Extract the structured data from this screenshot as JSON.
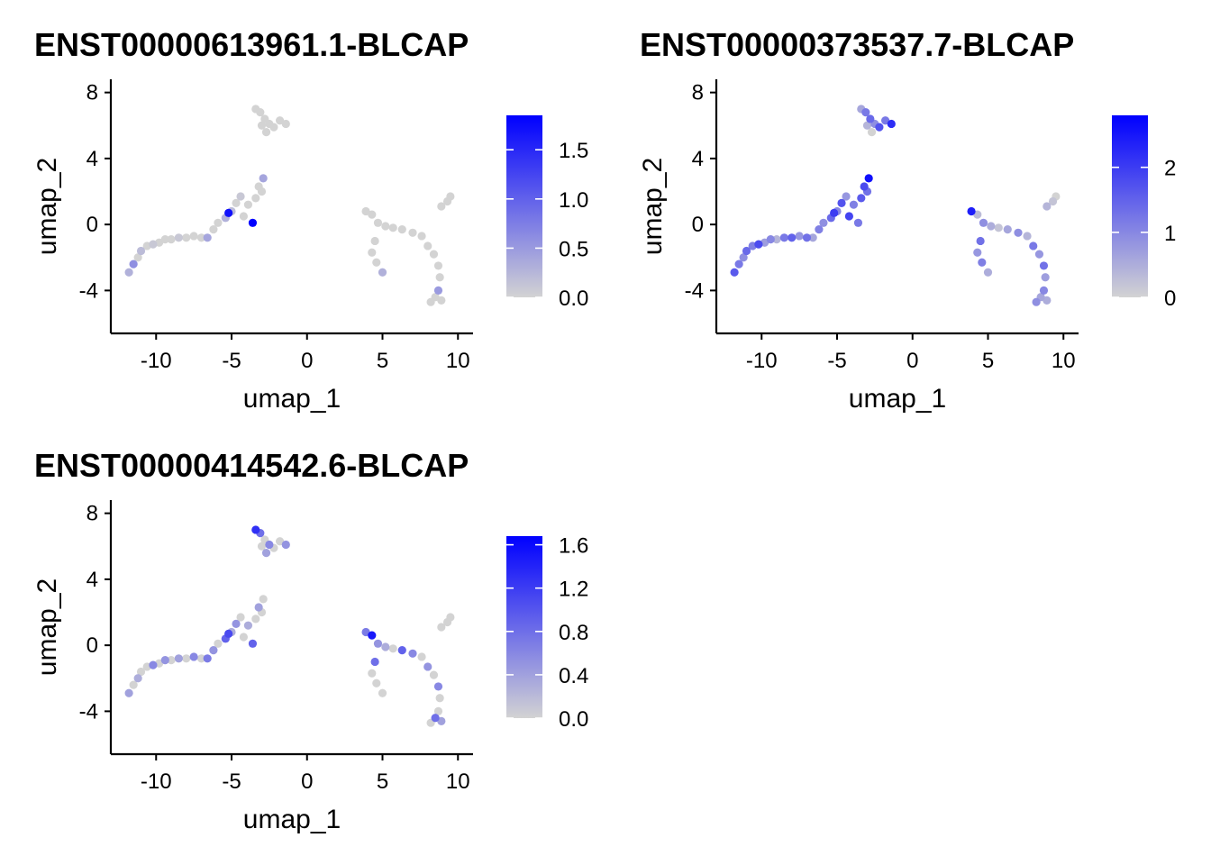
{
  "chart_data": [
    {
      "type": "scatter",
      "title": "ENST00000613961.1-BLCAP",
      "xlabel": "umap_1",
      "ylabel": "umap_2",
      "xlim": [
        -13,
        11
      ],
      "ylim": [
        -6.6,
        8.8
      ],
      "x_ticks": [
        -10,
        -5,
        0,
        5,
        10
      ],
      "x_tick_labels": [
        "-10",
        "-5",
        "0",
        "5",
        "10"
      ],
      "y_ticks": [
        -4,
        0,
        4,
        8
      ],
      "y_tick_labels": [
        "-4",
        "0",
        "4",
        "8"
      ],
      "colorbar": {
        "min": 0.0,
        "max": 1.85,
        "low_color": "#d3d3d3",
        "high_color": "#0000ff",
        "ticks": [
          0.0,
          0.5,
          1.0,
          1.5
        ],
        "tick_labels": [
          "0.0",
          "0.5",
          "1.0",
          "1.5"
        ]
      },
      "points": [
        [
          -11.8,
          -2.9,
          0.3
        ],
        [
          -11.5,
          -2.4,
          0.6
        ],
        [
          -11.2,
          -2.0,
          0.0
        ],
        [
          -11.0,
          -1.6,
          0.2
        ],
        [
          -10.6,
          -1.3,
          0.0
        ],
        [
          -10.2,
          -1.2,
          0.1
        ],
        [
          -9.8,
          -1.1,
          0.0
        ],
        [
          -9.4,
          -0.9,
          0.0
        ],
        [
          -9.0,
          -0.9,
          0.0
        ],
        [
          -8.5,
          -0.8,
          0.1
        ],
        [
          -8.0,
          -0.8,
          0.0
        ],
        [
          -7.5,
          -0.7,
          0.0
        ],
        [
          -7.0,
          -0.8,
          0.0
        ],
        [
          -6.6,
          -0.8,
          0.4
        ],
        [
          -6.2,
          -0.3,
          0.0
        ],
        [
          -5.9,
          0.1,
          0.0
        ],
        [
          -5.4,
          0.4,
          0.3
        ],
        [
          -5.0,
          0.8,
          0.2
        ],
        [
          -4.7,
          1.3,
          0.0
        ],
        [
          -4.4,
          1.7,
          0.1
        ],
        [
          -5.2,
          0.7,
          1.7
        ],
        [
          -3.6,
          0.1,
          1.85
        ],
        [
          -4.2,
          0.5,
          0.0
        ],
        [
          -3.9,
          1.2,
          0.0
        ],
        [
          -3.4,
          1.6,
          0.0
        ],
        [
          -3.0,
          2.0,
          0.0
        ],
        [
          -2.9,
          2.8,
          0.4
        ],
        [
          -3.2,
          2.3,
          0.0
        ],
        [
          -3.4,
          7.0,
          0.0
        ],
        [
          -3.1,
          6.8,
          0.0
        ],
        [
          -2.8,
          6.4,
          0.0
        ],
        [
          -2.5,
          6.1,
          0.0
        ],
        [
          -2.2,
          5.9,
          0.0
        ],
        [
          -1.8,
          6.3,
          0.0
        ],
        [
          -1.4,
          6.1,
          0.0
        ],
        [
          -3.0,
          6.0,
          0.0
        ],
        [
          -2.7,
          5.6,
          0.0
        ],
        [
          3.9,
          0.8,
          0.0
        ],
        [
          4.3,
          0.6,
          0.0
        ],
        [
          4.7,
          0.1,
          0.0
        ],
        [
          5.2,
          -0.1,
          0.0
        ],
        [
          5.7,
          -0.2,
          0.0
        ],
        [
          6.3,
          -0.3,
          0.0
        ],
        [
          7.0,
          -0.5,
          0.0
        ],
        [
          7.6,
          -0.7,
          0.0
        ],
        [
          8.0,
          -1.3,
          0.0
        ],
        [
          8.4,
          -1.8,
          0.0
        ],
        [
          8.7,
          -2.5,
          0.0
        ],
        [
          8.8,
          -3.2,
          0.0
        ],
        [
          8.7,
          -4.0,
          0.5
        ],
        [
          8.5,
          -4.4,
          0.0
        ],
        [
          8.2,
          -4.7,
          0.0
        ],
        [
          8.9,
          -4.6,
          0.0
        ],
        [
          4.3,
          -1.7,
          0.0
        ],
        [
          4.6,
          -2.3,
          0.0
        ],
        [
          5.0,
          -2.9,
          0.3
        ],
        [
          4.5,
          -1.0,
          0.0
        ],
        [
          8.9,
          1.1,
          0.0
        ],
        [
          9.3,
          1.4,
          0.0
        ],
        [
          9.5,
          1.7,
          0.0
        ]
      ]
    },
    {
      "type": "scatter",
      "title": "ENST00000373537.7-BLCAP",
      "xlabel": "umap_1",
      "ylabel": "umap_2",
      "xlim": [
        -13,
        11
      ],
      "ylim": [
        -6.6,
        8.8
      ],
      "x_ticks": [
        -10,
        -5,
        0,
        5,
        10
      ],
      "x_tick_labels": [
        "-10",
        "-5",
        "0",
        "5",
        "10"
      ],
      "y_ticks": [
        -4,
        0,
        4,
        8
      ],
      "y_tick_labels": [
        "-4",
        "0",
        "4",
        "8"
      ],
      "colorbar": {
        "min": 0,
        "max": 2.8,
        "low_color": "#d3d3d3",
        "high_color": "#0000ff",
        "ticks": [
          0,
          1,
          2
        ],
        "tick_labels": [
          "0",
          "1",
          "2"
        ]
      },
      "points": [
        [
          -11.8,
          -2.9,
          1.6
        ],
        [
          -11.5,
          -2.4,
          1.2
        ],
        [
          -11.2,
          -2.0,
          0.9
        ],
        [
          -11.0,
          -1.6,
          1.4
        ],
        [
          -10.6,
          -1.3,
          1.1
        ],
        [
          -10.2,
          -1.2,
          1.8
        ],
        [
          -9.8,
          -1.1,
          0.7
        ],
        [
          -9.4,
          -0.9,
          1.0
        ],
        [
          -9.0,
          -0.9,
          0.4
        ],
        [
          -8.5,
          -0.8,
          1.2
        ],
        [
          -8.0,
          -0.8,
          1.5
        ],
        [
          -7.5,
          -0.7,
          0.8
        ],
        [
          -7.0,
          -0.8,
          1.3
        ],
        [
          -6.6,
          -0.8,
          0.6
        ],
        [
          -6.2,
          -0.3,
          1.1
        ],
        [
          -5.9,
          0.1,
          0.9
        ],
        [
          -5.4,
          0.4,
          1.4
        ],
        [
          -5.0,
          0.8,
          1.0
        ],
        [
          -4.7,
          1.3,
          1.7
        ],
        [
          -4.4,
          1.7,
          0.8
        ],
        [
          -5.2,
          0.7,
          2.0
        ],
        [
          -3.6,
          0.1,
          1.2
        ],
        [
          -4.2,
          0.5,
          1.9
        ],
        [
          -3.9,
          1.2,
          1.1
        ],
        [
          -3.4,
          1.6,
          1.6
        ],
        [
          -3.0,
          2.0,
          1.3
        ],
        [
          -2.9,
          2.8,
          2.6
        ],
        [
          -3.2,
          2.3,
          1.8
        ],
        [
          -3.4,
          7.0,
          0.6
        ],
        [
          -3.1,
          6.8,
          1.2
        ],
        [
          -2.8,
          6.4,
          1.4
        ],
        [
          -2.5,
          6.1,
          0.9
        ],
        [
          -2.2,
          5.9,
          1.7
        ],
        [
          -1.8,
          6.3,
          1.2
        ],
        [
          -1.4,
          6.1,
          2.2
        ],
        [
          -3.0,
          6.0,
          0.4
        ],
        [
          -2.7,
          5.6,
          0.0
        ],
        [
          3.9,
          0.8,
          2.4
        ],
        [
          4.3,
          0.6,
          0.3
        ],
        [
          4.7,
          0.1,
          0.9
        ],
        [
          5.2,
          -0.1,
          0.5
        ],
        [
          5.7,
          -0.2,
          0.2
        ],
        [
          6.3,
          -0.3,
          0.6
        ],
        [
          7.0,
          -0.5,
          0.9
        ],
        [
          7.6,
          -0.7,
          0.4
        ],
        [
          8.0,
          -1.3,
          1.2
        ],
        [
          8.4,
          -1.8,
          0.8
        ],
        [
          8.7,
          -2.5,
          1.3
        ],
        [
          8.8,
          -3.2,
          0.7
        ],
        [
          8.7,
          -4.0,
          1.0
        ],
        [
          8.5,
          -4.4,
          0.6
        ],
        [
          8.2,
          -4.7,
          0.9
        ],
        [
          8.9,
          -4.6,
          0.5
        ],
        [
          4.3,
          -1.7,
          0.8
        ],
        [
          4.6,
          -2.3,
          1.1
        ],
        [
          5.0,
          -2.9,
          0.5
        ],
        [
          4.5,
          -1.0,
          1.3
        ],
        [
          8.9,
          1.1,
          0.4
        ],
        [
          9.3,
          1.4,
          0.2
        ],
        [
          9.5,
          1.7,
          0.0
        ]
      ]
    },
    {
      "type": "scatter",
      "title": "ENST00000414542.6-BLCAP",
      "xlabel": "umap_1",
      "ylabel": "umap_2",
      "xlim": [
        -13,
        11
      ],
      "ylim": [
        -6.6,
        8.8
      ],
      "x_ticks": [
        -10,
        -5,
        0,
        5,
        10
      ],
      "x_tick_labels": [
        "-10",
        "-5",
        "0",
        "5",
        "10"
      ],
      "y_ticks": [
        -4,
        0,
        4,
        8
      ],
      "y_tick_labels": [
        "-4",
        "0",
        "4",
        "8"
      ],
      "colorbar": {
        "min": 0.0,
        "max": 1.68,
        "low_color": "#d3d3d3",
        "high_color": "#0000ff",
        "ticks": [
          0.0,
          0.4,
          0.8,
          1.2,
          1.6
        ],
        "tick_labels": [
          "0.0",
          "0.4",
          "0.8",
          "1.2",
          "1.6"
        ]
      },
      "points": [
        [
          -11.8,
          -2.9,
          0.4
        ],
        [
          -11.5,
          -2.4,
          0.0
        ],
        [
          -11.2,
          -2.0,
          0.3
        ],
        [
          -11.0,
          -1.6,
          0.0
        ],
        [
          -10.6,
          -1.3,
          0.0
        ],
        [
          -10.2,
          -1.2,
          0.6
        ],
        [
          -9.8,
          -1.1,
          0.0
        ],
        [
          -9.4,
          -0.9,
          0.5
        ],
        [
          -9.0,
          -0.9,
          0.0
        ],
        [
          -8.5,
          -0.8,
          0.4
        ],
        [
          -8.0,
          -0.8,
          0.0
        ],
        [
          -7.5,
          -0.7,
          0.6
        ],
        [
          -7.0,
          -0.8,
          0.0
        ],
        [
          -6.6,
          -0.8,
          0.7
        ],
        [
          -6.2,
          -0.3,
          0.5
        ],
        [
          -5.9,
          0.1,
          0.0
        ],
        [
          -5.4,
          0.4,
          0.9
        ],
        [
          -5.0,
          0.8,
          0.3
        ],
        [
          -4.7,
          1.3,
          0.5
        ],
        [
          -4.4,
          1.7,
          0.0
        ],
        [
          -5.2,
          0.7,
          1.1
        ],
        [
          -3.6,
          0.1,
          0.9
        ],
        [
          -4.2,
          0.5,
          0.0
        ],
        [
          -3.9,
          1.2,
          0.3
        ],
        [
          -3.4,
          1.6,
          0.0
        ],
        [
          -3.0,
          2.0,
          0.0
        ],
        [
          -2.9,
          2.8,
          0.0
        ],
        [
          -3.2,
          2.3,
          0.4
        ],
        [
          -3.4,
          7.0,
          1.3
        ],
        [
          -3.1,
          6.8,
          0.8
        ],
        [
          -2.8,
          6.4,
          0.0
        ],
        [
          -2.5,
          6.1,
          0.6
        ],
        [
          -2.2,
          5.9,
          0.0
        ],
        [
          -1.8,
          6.3,
          0.0
        ],
        [
          -1.4,
          6.1,
          0.5
        ],
        [
          -3.0,
          6.0,
          0.0
        ],
        [
          -2.7,
          5.6,
          0.4
        ],
        [
          3.9,
          0.8,
          0.7
        ],
        [
          4.3,
          0.6,
          1.5
        ],
        [
          4.7,
          0.1,
          0.5
        ],
        [
          5.2,
          -0.1,
          0.3
        ],
        [
          5.7,
          -0.2,
          0.0
        ],
        [
          6.3,
          -0.3,
          0.9
        ],
        [
          7.0,
          -0.5,
          0.6
        ],
        [
          7.6,
          -0.7,
          0.0
        ],
        [
          8.0,
          -1.3,
          0.5
        ],
        [
          8.4,
          -1.8,
          0.0
        ],
        [
          8.7,
          -2.5,
          0.6
        ],
        [
          8.8,
          -3.2,
          0.0
        ],
        [
          8.7,
          -4.0,
          0.0
        ],
        [
          8.5,
          -4.4,
          0.8
        ],
        [
          8.2,
          -4.7,
          0.0
        ],
        [
          8.9,
          -4.6,
          0.4
        ],
        [
          4.3,
          -1.7,
          0.0
        ],
        [
          4.6,
          -2.3,
          0.0
        ],
        [
          5.0,
          -2.9,
          0.0
        ],
        [
          4.5,
          -1.0,
          0.8
        ],
        [
          8.9,
          1.1,
          0.0
        ],
        [
          9.3,
          1.4,
          0.0
        ],
        [
          9.5,
          1.7,
          0.0
        ]
      ]
    }
  ]
}
